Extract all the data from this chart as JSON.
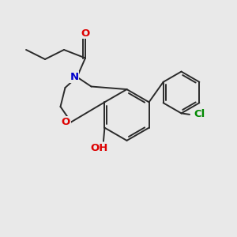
{
  "bg_color": "#e9e9e9",
  "bond_color": "#2a2a2a",
  "bond_width": 1.4,
  "atom_colors": {
    "O_carbonyl": "#dd0000",
    "N": "#0000cc",
    "O_ring": "#dd0000",
    "OH": "#dd0000",
    "Cl": "#008800"
  },
  "font_size": 8.5,
  "fig_size": [
    3.0,
    3.0
  ],
  "dpi": 100
}
